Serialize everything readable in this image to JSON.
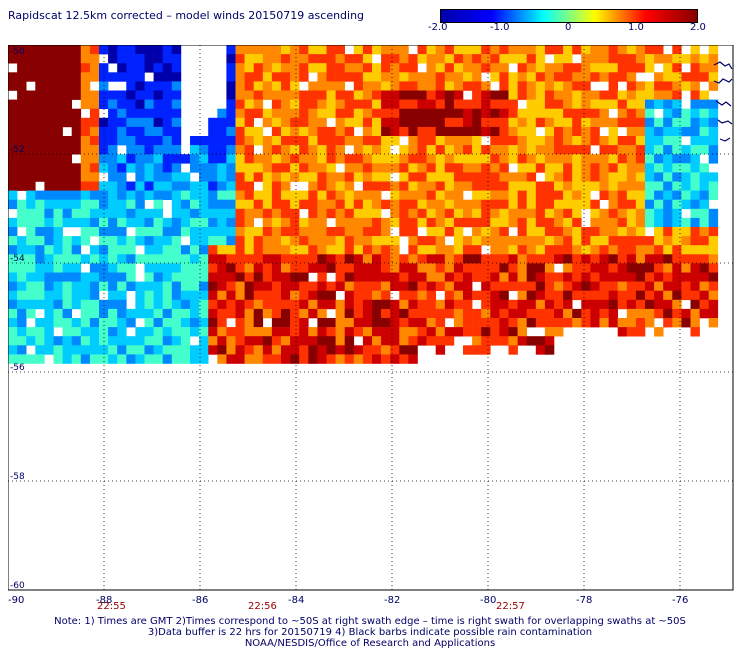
{
  "title": "Rapidscat 12.5km corrected – model winds 20150719 ascending",
  "colorbar": {
    "labels": [
      "-2.0",
      "-1.0",
      "0",
      "1.0",
      "2.0"
    ],
    "stops": [
      "#0000aa",
      "#0000ff",
      "#00ffff",
      "#ffff00",
      "#ff0000",
      "#880000"
    ]
  },
  "axes": {
    "y_ticks": [
      "-50",
      "-52",
      "-54",
      "-56",
      "-58",
      "-60"
    ],
    "x_ticks": [
      "-90",
      "-88",
      "-86",
      "-84",
      "-82",
      "-80",
      "-78",
      "-76"
    ]
  },
  "times": [
    "22:55",
    "22:56",
    "22:57"
  ],
  "notes": {
    "line1": "Note: 1) Times are GMT 2)Times correspond to ~50S at right swath edge – time is right swath for overlapping swaths at ~50S",
    "line2": "3)Data buffer is 22 hrs for 20150719 4) Black barbs indicate possible rain contamination",
    "line3": "NOAA/NESDIS/Office of Research and Applications"
  }
}
